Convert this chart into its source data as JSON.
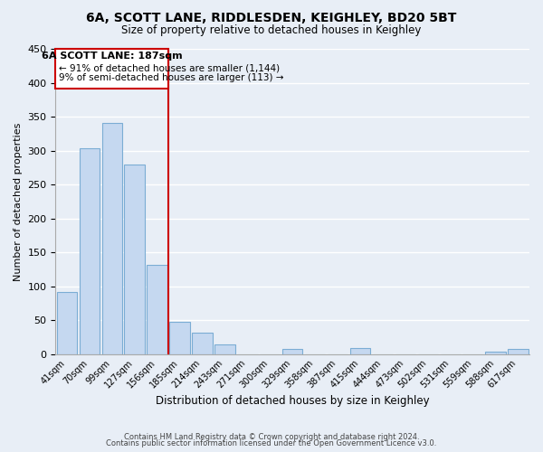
{
  "title": "6A, SCOTT LANE, RIDDLESDEN, KEIGHLEY, BD20 5BT",
  "subtitle": "Size of property relative to detached houses in Keighley",
  "xlabel": "Distribution of detached houses by size in Keighley",
  "ylabel": "Number of detached properties",
  "bar_labels": [
    "41sqm",
    "70sqm",
    "99sqm",
    "127sqm",
    "156sqm",
    "185sqm",
    "214sqm",
    "243sqm",
    "271sqm",
    "300sqm",
    "329sqm",
    "358sqm",
    "387sqm",
    "415sqm",
    "444sqm",
    "473sqm",
    "502sqm",
    "531sqm",
    "559sqm",
    "588sqm",
    "617sqm"
  ],
  "bar_values": [
    91,
    303,
    341,
    279,
    131,
    47,
    31,
    14,
    0,
    0,
    8,
    0,
    0,
    9,
    0,
    0,
    0,
    0,
    0,
    3,
    8
  ],
  "bar_color": "#c5d8f0",
  "bar_edge_color": "#7badd4",
  "property_label": "6A SCOTT LANE: 187sqm",
  "annotation_line1": "← 91% of detached houses are smaller (1,144)",
  "annotation_line2": "9% of semi-detached houses are larger (113) →",
  "vline_color": "#cc0000",
  "vline_x_index": 5,
  "ylim": [
    0,
    450
  ],
  "yticks": [
    0,
    50,
    100,
    150,
    200,
    250,
    300,
    350,
    400,
    450
  ],
  "background_color": "#e8eef6",
  "grid_color": "#ffffff",
  "footer_line1": "Contains HM Land Registry data © Crown copyright and database right 2024.",
  "footer_line2": "Contains public sector information licensed under the Open Government Licence v3.0."
}
